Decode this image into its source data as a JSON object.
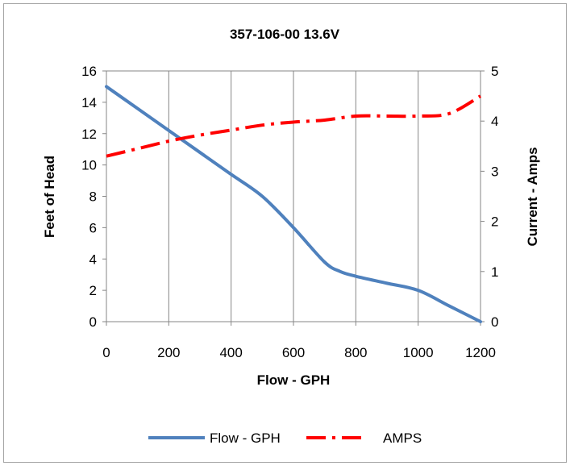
{
  "chart_data": {
    "type": "line",
    "title": "357-106-00 13.6V",
    "xlabel": "Flow - GPH",
    "ylabel": "Feet of Head",
    "y2label": "Current - Amps",
    "xlim": [
      0,
      1200
    ],
    "ylim": [
      0,
      16
    ],
    "y2lim": [
      0,
      5
    ],
    "x_ticks": [
      0,
      200,
      400,
      600,
      800,
      1000,
      1200
    ],
    "y_ticks": [
      0,
      2,
      4,
      6,
      8,
      10,
      12,
      14,
      16
    ],
    "y2_ticks": [
      0,
      1,
      2,
      3,
      4,
      5
    ],
    "grid": "vertical",
    "legend_position": "bottom",
    "series": [
      {
        "name": "Flow - GPH",
        "axis": "left",
        "color": "#4F81BD",
        "style": "solid",
        "x": [
          0,
          100,
          200,
          300,
          400,
          500,
          600,
          700,
          750,
          800,
          900,
          1000,
          1100,
          1200
        ],
        "values": [
          15,
          13.6,
          12.2,
          10.8,
          9.4,
          8.0,
          6.0,
          3.8,
          3.2,
          2.9,
          2.45,
          2.0,
          1.0,
          0
        ]
      },
      {
        "name": "AMPS",
        "axis": "right",
        "color": "#FF0000",
        "style": "dash-dot",
        "x": [
          0,
          100,
          200,
          300,
          400,
          500,
          600,
          700,
          800,
          900,
          1000,
          1100,
          1200
        ],
        "values": [
          3.3,
          3.45,
          3.6,
          3.72,
          3.82,
          3.92,
          3.98,
          4.02,
          4.1,
          4.1,
          4.1,
          4.15,
          4.5
        ]
      }
    ]
  }
}
